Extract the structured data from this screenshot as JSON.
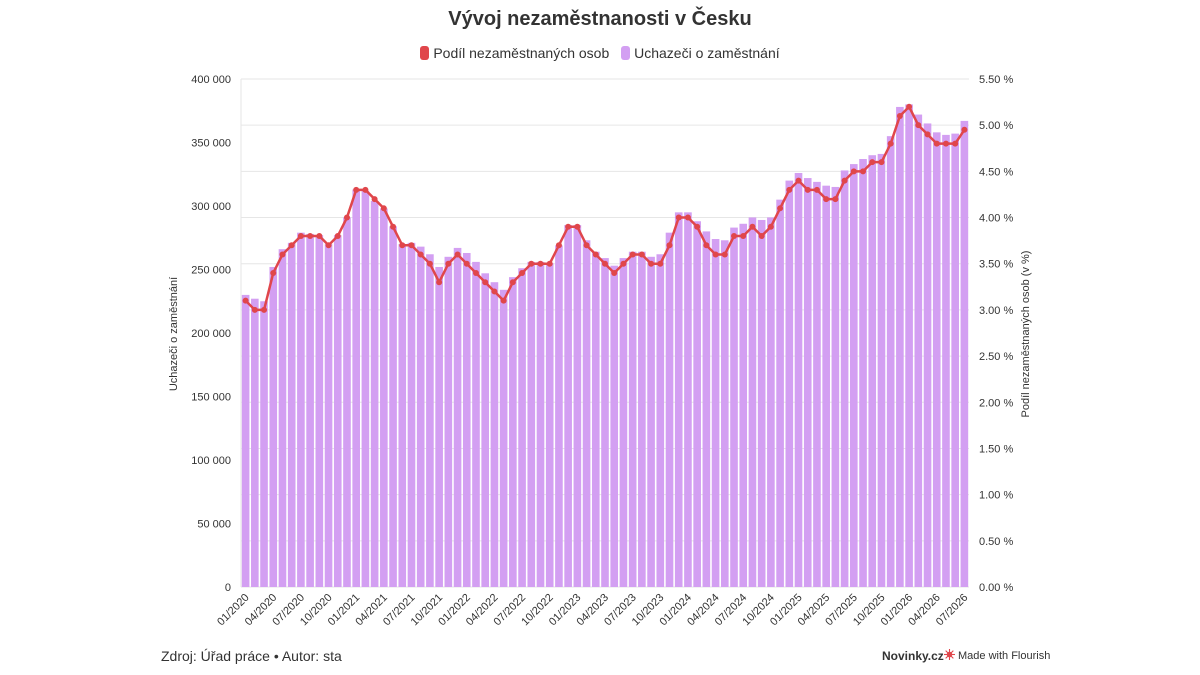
{
  "colors": {
    "line": "#e0464b",
    "bars": "#d39ff2",
    "bars_highlight": "#c58ae8",
    "grid": "#e6e6e6",
    "text": "#333333"
  },
  "chart_data": {
    "type": "bar+line",
    "title": "Vývoj nezaměstnanosti v Česku",
    "legend_position": "top-center",
    "grid": true,
    "y_left": {
      "label": "Uchazeči o zaměstnání",
      "range": [
        0,
        400000
      ],
      "ticks": [
        "0",
        "50 000",
        "100 000",
        "150 000",
        "200 000",
        "250 000",
        "300 000",
        "350 000",
        "400 000"
      ]
    },
    "y_right": {
      "label": "Podíl nezaměstnaných osob (v %)",
      "range": [
        0,
        5.5
      ],
      "ticks": [
        "0.00 %",
        "0.50 %",
        "1.00 %",
        "1.50 %",
        "2.00 %",
        "2.50 %",
        "3.00 %",
        "3.50 %",
        "4.00 %",
        "4.50 %",
        "5.00 %",
        "5.50 %"
      ]
    },
    "x_tick_labels": [
      "01/2020",
      "04/2020",
      "07/2020",
      "10/2020",
      "01/2021",
      "04/2021",
      "07/2021",
      "10/2021",
      "01/2022",
      "04/2022",
      "07/2022",
      "10/2022",
      "01/2023",
      "04/2023",
      "07/2023",
      "10/2023",
      "01/2024",
      "04/2024",
      "07/2024",
      "10/2024",
      "01/2025",
      "04/2025",
      "07/2025",
      "10/2025",
      "01/2026",
      "04/2026",
      "07/2026"
    ],
    "months": 79,
    "series": [
      {
        "name": "Podíl nezaměstnaných osob",
        "type": "line",
        "axis": "right",
        "values": [
          3.1,
          3.0,
          3.0,
          3.4,
          3.6,
          3.7,
          3.8,
          3.8,
          3.8,
          3.7,
          3.8,
          4.0,
          4.3,
          4.3,
          4.2,
          4.1,
          3.9,
          3.7,
          3.7,
          3.6,
          3.5,
          3.3,
          3.5,
          3.6,
          3.5,
          3.4,
          3.3,
          3.2,
          3.1,
          3.3,
          3.4,
          3.5,
          3.5,
          3.5,
          3.7,
          3.9,
          3.9,
          3.7,
          3.6,
          3.5,
          3.4,
          3.5,
          3.6,
          3.6,
          3.5,
          3.5,
          3.7,
          4.0,
          4.0,
          3.9,
          3.7,
          3.6,
          3.6,
          3.8,
          3.8,
          3.9,
          3.8,
          3.9,
          4.1,
          4.3,
          4.4,
          4.3,
          4.3,
          4.2,
          4.2,
          4.4,
          4.5,
          4.5,
          4.6,
          4.6,
          4.8,
          5.1,
          5.2,
          5.0,
          4.9,
          4.8,
          4.8,
          4.8,
          4.95
        ]
      },
      {
        "name": "Uchazeči o zaměstnání",
        "type": "bar",
        "axis": "left",
        "values": [
          230000,
          227000,
          225000,
          252000,
          266000,
          271000,
          279000,
          278000,
          277000,
          270000,
          277000,
          291000,
          313000,
          312000,
          304000,
          298000,
          284000,
          270000,
          271000,
          268000,
          262000,
          252000,
          260000,
          267000,
          263000,
          256000,
          247000,
          240000,
          234000,
          244000,
          251000,
          256000,
          256000,
          255000,
          269000,
          285000,
          285000,
          273000,
          264000,
          259000,
          253000,
          259000,
          264000,
          264000,
          260000,
          262000,
          279000,
          295000,
          295000,
          288000,
          280000,
          274000,
          273000,
          283000,
          286000,
          291000,
          289000,
          291000,
          305000,
          320000,
          326000,
          322000,
          319000,
          316000,
          315000,
          328000,
          333000,
          337000,
          340000,
          341000,
          355000,
          378000,
          380000,
          372000,
          365000,
          358000,
          356000,
          357000,
          367000
        ]
      }
    ]
  },
  "footer": {
    "source": "Zdroj: Úřad práce • Autor: sta",
    "brand": "Novinky.cz",
    "flourish": "Made with Flourish"
  }
}
